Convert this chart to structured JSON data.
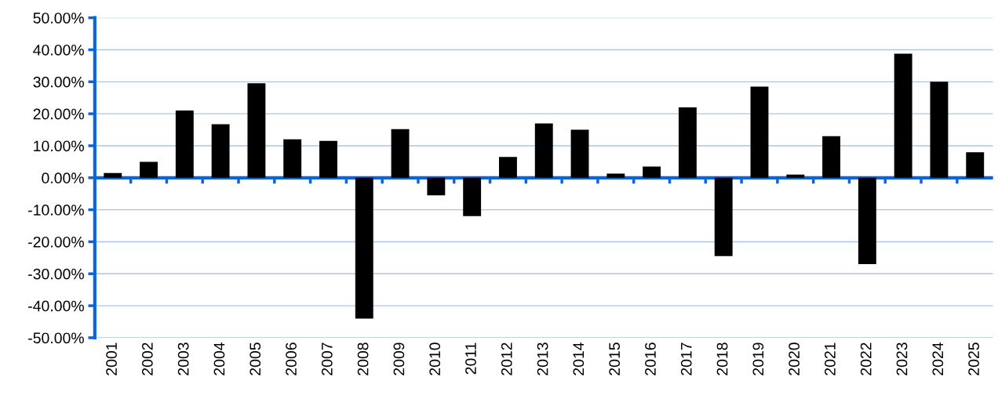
{
  "chart_data": {
    "type": "bar",
    "categories": [
      "2001",
      "2002",
      "2003",
      "2004",
      "2005",
      "2006",
      "2007",
      "2008",
      "2009",
      "2010",
      "2011",
      "2012",
      "2013",
      "2014",
      "2015",
      "2016",
      "2017",
      "2018",
      "2019",
      "2020",
      "2021",
      "2022",
      "2023",
      "2024",
      "2025"
    ],
    "values": [
      1.5,
      5,
      21,
      16.7,
      29.5,
      12,
      11.5,
      -44,
      15.2,
      -5.5,
      -12,
      6.5,
      17,
      15,
      1.3,
      3.5,
      22,
      -24.5,
      28.5,
      1,
      13,
      -27,
      38.8,
      30,
      8
    ],
    "color": "#000000",
    "ylim": [
      -50,
      50
    ],
    "yticks": [
      {
        "value": -50,
        "label": "-50.00%"
      },
      {
        "value": -40,
        "label": "-40.00%"
      },
      {
        "value": -30,
        "label": "-30.00%"
      },
      {
        "value": -20,
        "label": "-20.00%"
      },
      {
        "value": -10,
        "label": "-10.00%"
      },
      {
        "value": 0,
        "label": "0.00%"
      },
      {
        "value": 10,
        "label": "10.00%"
      },
      {
        "value": 20,
        "label": "20.00%"
      },
      {
        "value": 30,
        "label": "30.00%"
      },
      {
        "value": 40,
        "label": "40.00%"
      },
      {
        "value": 50,
        "label": "50.00%"
      }
    ],
    "grid": "y",
    "ref_lines": [
      {
        "axis": "y",
        "value": 0,
        "color": "#0a66d8"
      }
    ]
  }
}
